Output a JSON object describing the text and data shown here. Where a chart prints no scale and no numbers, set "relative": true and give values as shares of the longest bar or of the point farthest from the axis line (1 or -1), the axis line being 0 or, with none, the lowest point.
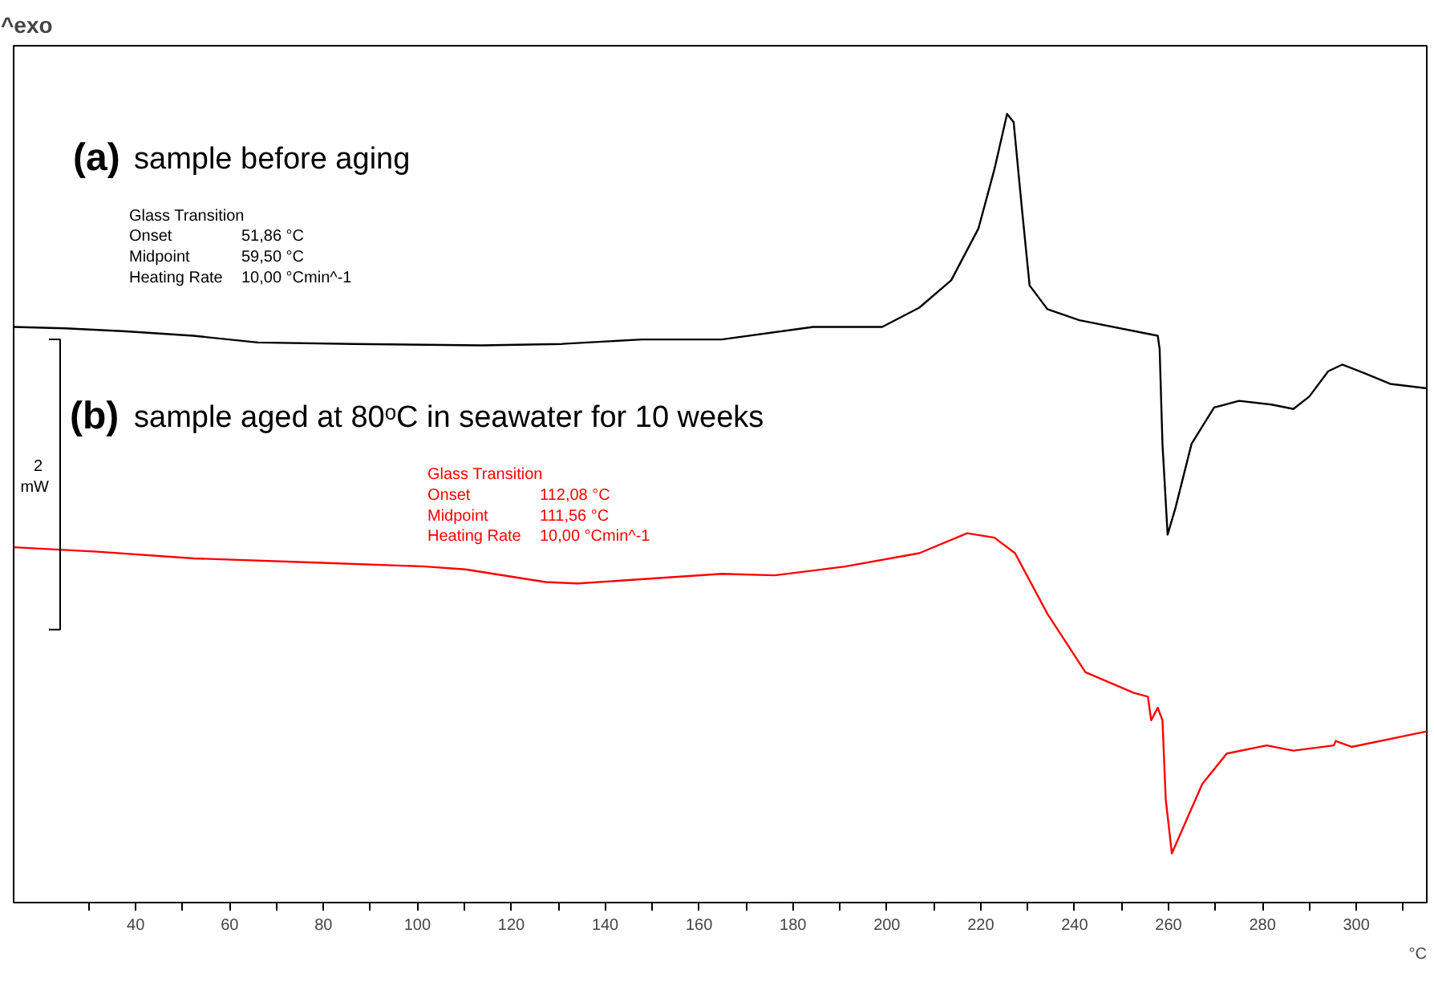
{
  "chart_data": {
    "type": "line",
    "relative": true,
    "xlabel": "°C",
    "xlim": [
      14,
      315
    ],
    "xticks": [
      40,
      60,
      80,
      100,
      120,
      140,
      160,
      180,
      200,
      220,
      240,
      260,
      280,
      300
    ],
    "grid": false,
    "marker": "none",
    "line_style": "solid",
    "series": [
      {
        "color": "#000000",
        "x": [
          14.1,
          25,
          38,
          52.3,
          66,
          86.4,
          113.7,
          130.8,
          147.8,
          164.8,
          184.3,
          199,
          206.9,
          213.7,
          219.5,
          222.9,
          225.6,
          227,
          228.7,
          230.4,
          234.2,
          241,
          257.7,
          258.1,
          258.7,
          259.8,
          261.5,
          264.9,
          269.7,
          275,
          281.9,
          286.6,
          290,
          294,
          297,
          301.5,
          307.2,
          315
        ],
        "values": [
          0.712,
          0.71,
          0.706,
          0.7,
          0.691,
          0.689,
          0.687,
          0.689,
          0.695,
          0.695,
          0.712,
          0.712,
          0.738,
          0.775,
          0.845,
          0.925,
          1.0,
          0.989,
          0.876,
          0.768,
          0.736,
          0.721,
          0.7,
          0.682,
          0.554,
          0.431,
          0.468,
          0.554,
          0.603,
          0.612,
          0.607,
          0.601,
          0.618,
          0.652,
          0.661,
          0.65,
          0.635,
          0.629
        ]
      },
      {
        "color": "#ff0000",
        "x": [
          14.1,
          31.8,
          52.3,
          79.6,
          101.7,
          110.3,
          127.3,
          134.1,
          164.8,
          176.1,
          191.1,
          206.9,
          217.1,
          222.9,
          227.3,
          234.2,
          242.3,
          252.6,
          255.6,
          256.3,
          257.7,
          258.7,
          259.4,
          260.7,
          263.8,
          267.2,
          272.4,
          280.9,
          286.6,
          295.2,
          295.6,
          299,
          315
        ],
        "values": [
          0.414,
          0.408,
          0.399,
          0.393,
          0.388,
          0.384,
          0.367,
          0.365,
          0.378,
          0.376,
          0.388,
          0.406,
          0.433,
          0.427,
          0.406,
          0.324,
          0.245,
          0.217,
          0.212,
          0.18,
          0.197,
          0.18,
          0.073,
          0.0,
          0.045,
          0.094,
          0.135,
          0.146,
          0.139,
          0.146,
          0.152,
          0.144,
          0.165
        ]
      }
    ],
    "annotations": [
      "^exo",
      "(a)",
      "sample before aging",
      "Glass Transition",
      "Onset",
      "51,86 °C",
      "Midpoint",
      "59,50 °C",
      "Heating Rate",
      "10,00 °Cmin^-1",
      "(b)",
      "sample aged at 80ᵒC in seawater for 10 weeks",
      "2",
      "mW",
      "Glass Transition",
      "Onset",
      "112,08 °C",
      "Midpoint",
      "111,56 °C",
      "Heating Rate",
      "10,00 °Cmin^-1"
    ]
  }
}
